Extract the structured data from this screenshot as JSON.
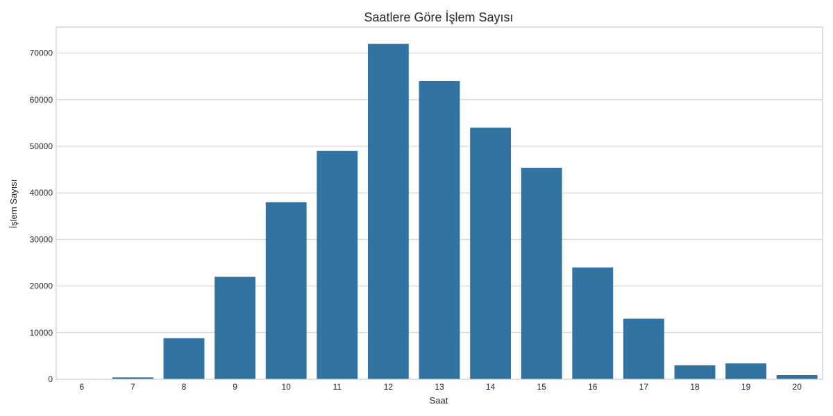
{
  "chart_data": {
    "type": "bar",
    "title": "Saatlere Göre İşlem Sayısı",
    "xlabel": "Saat",
    "ylabel": "İşlem Sayısı",
    "categories": [
      "6",
      "7",
      "8",
      "9",
      "10",
      "11",
      "12",
      "13",
      "14",
      "15",
      "16",
      "17",
      "18",
      "19",
      "20"
    ],
    "values": [
      0,
      400,
      8800,
      22000,
      38000,
      49000,
      72000,
      64000,
      54000,
      45400,
      24000,
      13000,
      3000,
      3400,
      900
    ],
    "ylim": [
      0,
      75600
    ],
    "yticks": [
      0,
      10000,
      20000,
      30000,
      40000,
      50000,
      60000,
      70000
    ],
    "ytick_labels": [
      "0",
      "10000",
      "20000",
      "30000",
      "40000",
      "50000",
      "60000",
      "70000"
    ],
    "grid": "horizontal",
    "bar_color": "#3274a1",
    "grid_color": "#cccccc",
    "frame_color": "#cccccc"
  }
}
